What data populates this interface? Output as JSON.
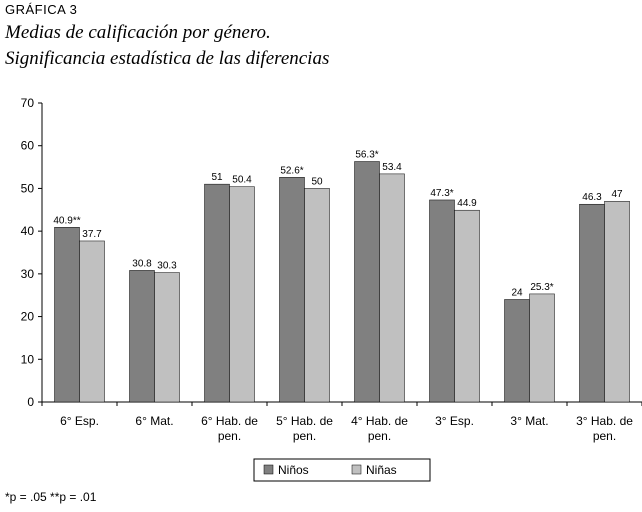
{
  "figure_label": "GRÁFICA 3",
  "title_line1": "Medias de calificación por género.",
  "title_line2": "Significancia estadística de las diferencias",
  "footnote": "*p = .05 **p = .01",
  "colors": {
    "ninos": "#808080",
    "ninas": "#c0c0c0"
  },
  "chart_data": {
    "type": "bar",
    "categories": [
      [
        "6° Esp."
      ],
      [
        "6° Mat."
      ],
      [
        "6° Hab. de",
        "pen."
      ],
      [
        "5° Hab. de",
        "pen."
      ],
      [
        "4° Hab. de",
        "pen."
      ],
      [
        "3° Esp."
      ],
      [
        "3° Mat."
      ],
      [
        "3° Hab. de",
        "pen."
      ]
    ],
    "series": [
      {
        "name": "Niños",
        "values": [
          40.9,
          30.8,
          51,
          52.6,
          56.3,
          47.3,
          24,
          46.3
        ],
        "labels": [
          "40.9**",
          "30.8",
          "51",
          "52.6*",
          "56.3*",
          "47.3*",
          "24",
          "46.3"
        ]
      },
      {
        "name": "Niñas",
        "values": [
          37.7,
          30.3,
          50.4,
          50,
          53.4,
          44.9,
          25.3,
          47
        ],
        "labels": [
          "37.7",
          "30.3",
          "50.4",
          "50",
          "53.4",
          "44.9",
          "25.3*",
          "47"
        ]
      }
    ],
    "yticks": [
      "0",
      "10",
      "20",
      "30",
      "40",
      "50",
      "60",
      "70"
    ],
    "ylim": [
      0,
      70
    ],
    "legend_position": "bottom"
  }
}
